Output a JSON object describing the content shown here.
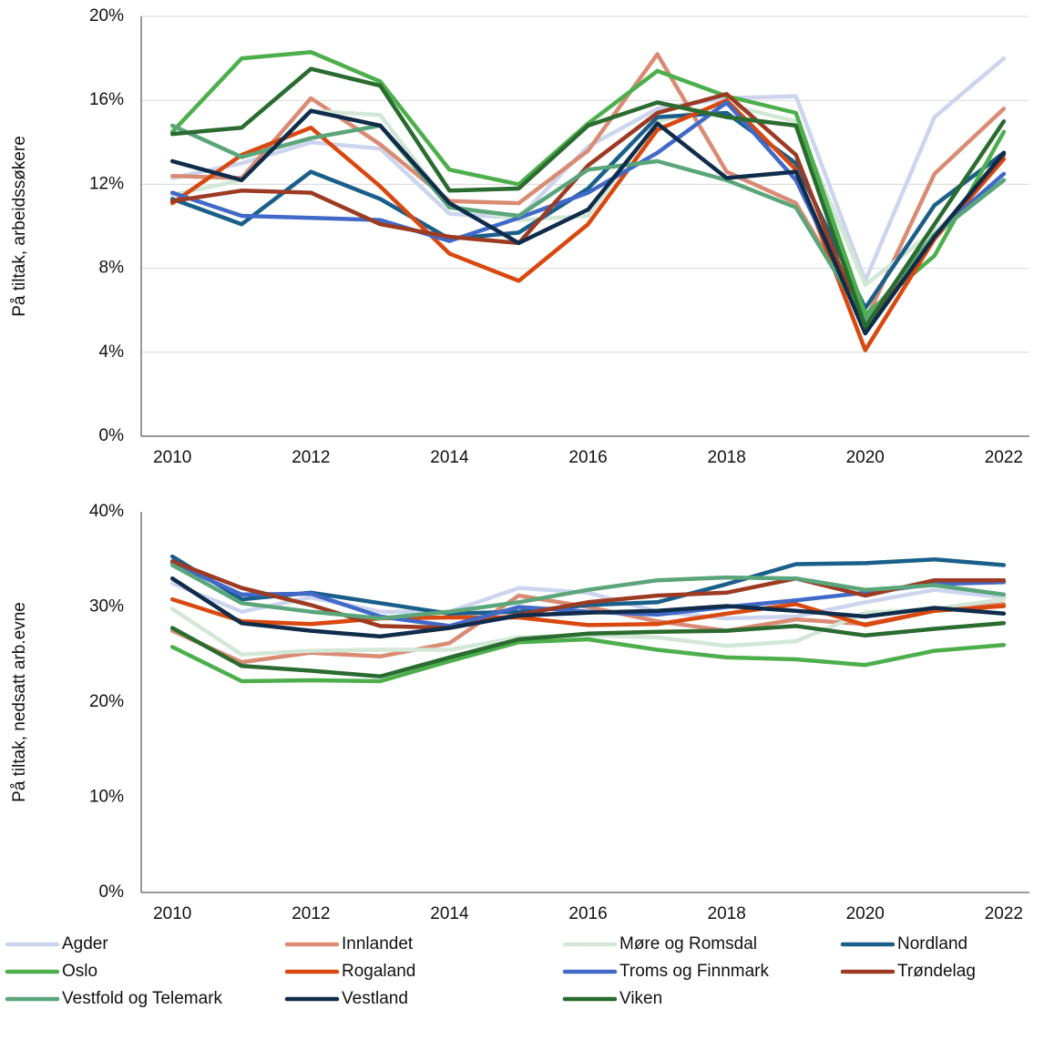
{
  "chart_data": [
    {
      "type": "line",
      "y_label": "På tiltak, arbeidssøkere",
      "x": [
        2010,
        2011,
        2012,
        2013,
        2014,
        2015,
        2016,
        2017,
        2018,
        2019,
        2020,
        2021,
        2022
      ],
      "xlim": [
        2009.55,
        2022.37
      ],
      "xticks": [
        2010,
        2012,
        2014,
        2016,
        2018,
        2020,
        2022
      ],
      "ylim": [
        0,
        20
      ],
      "yticks": [
        {
          "value": 0,
          "label": "0%"
        },
        {
          "value": 4,
          "label": "4%"
        },
        {
          "value": 8,
          "label": "8%"
        },
        {
          "value": 12,
          "label": "12%"
        },
        {
          "value": 16,
          "label": "16%"
        },
        {
          "value": 20,
          "label": "20%"
        }
      ],
      "grid": true,
      "series": [
        {
          "name": "Agder",
          "color": "#cdd5ee",
          "values": [
            12.3,
            13.0,
            14.0,
            13.7,
            10.6,
            10.4,
            13.8,
            15.6,
            16.1,
            16.2,
            7.4,
            15.2,
            18.0
          ]
        },
        {
          "name": "Innlandet",
          "color": "#d98b74",
          "values": [
            12.4,
            12.3,
            16.1,
            13.9,
            11.2,
            11.1,
            13.6,
            18.2,
            12.6,
            11.1,
            5.5,
            12.5,
            15.6
          ]
        },
        {
          "name": "Møre og Romsdal",
          "color": "#d3e7d7",
          "values": [
            11.5,
            12.2,
            15.5,
            15.3,
            11.0,
            10.3,
            10.5,
            15.0,
            15.8,
            15.0,
            7.2,
            9.8,
            12.2
          ]
        },
        {
          "name": "Nordland",
          "color": "#1a5f8a",
          "values": [
            11.3,
            10.1,
            12.6,
            11.3,
            9.4,
            9.7,
            11.8,
            15.2,
            15.4,
            13.0,
            6.1,
            11.0,
            13.5
          ]
        },
        {
          "name": "Oslo",
          "color": "#4caf4c",
          "values": [
            14.5,
            18.0,
            18.3,
            16.9,
            12.7,
            12.0,
            14.9,
            17.4,
            16.2,
            15.4,
            5.8,
            8.6,
            14.5
          ]
        },
        {
          "name": "Rogaland",
          "color": "#d9480f",
          "values": [
            11.1,
            13.4,
            14.7,
            11.9,
            8.7,
            7.4,
            10.1,
            14.6,
            16.0,
            12.7,
            4.1,
            9.4,
            13.2
          ]
        },
        {
          "name": "Troms og Finnmark",
          "color": "#4169c8",
          "values": [
            11.6,
            10.5,
            10.4,
            10.3,
            9.3,
            10.4,
            11.6,
            13.5,
            15.9,
            12.2,
            5.4,
            9.6,
            12.5
          ]
        },
        {
          "name": "Trøndelag",
          "color": "#9c3b22",
          "values": [
            11.2,
            11.7,
            11.6,
            10.1,
            9.5,
            9.2,
            12.9,
            15.4,
            16.3,
            13.4,
            5.0,
            9.5,
            13.4
          ]
        },
        {
          "name": "Vestfold og Telemark",
          "color": "#5aa57a",
          "values": [
            14.8,
            13.3,
            14.2,
            14.8,
            10.9,
            10.5,
            12.7,
            13.1,
            12.2,
            10.9,
            5.5,
            9.6,
            12.2
          ]
        },
        {
          "name": "Vestland",
          "color": "#0f2c4a",
          "values": [
            13.1,
            12.2,
            15.5,
            14.8,
            11.1,
            9.2,
            10.8,
            14.9,
            12.3,
            12.6,
            4.9,
            9.5,
            13.5
          ]
        },
        {
          "name": "Viken",
          "color": "#2a6b2f",
          "values": [
            14.4,
            14.7,
            17.5,
            16.7,
            11.7,
            11.8,
            14.8,
            15.9,
            15.2,
            14.8,
            5.2,
            10.1,
            15.0
          ]
        }
      ]
    },
    {
      "type": "line",
      "y_label": "På tiltak, nedsatt arb.evne",
      "x": [
        2010,
        2011,
        2012,
        2013,
        2014,
        2015,
        2016,
        2017,
        2018,
        2019,
        2020,
        2021,
        2022
      ],
      "xlim": [
        2009.55,
        2022.37
      ],
      "xticks": [
        2010,
        2012,
        2014,
        2016,
        2018,
        2020,
        2022
      ],
      "ylim": [
        0,
        40
      ],
      "yticks": [
        {
          "value": 0,
          "label": "0%"
        },
        {
          "value": 10,
          "label": "10%"
        },
        {
          "value": 20,
          "label": "20%"
        },
        {
          "value": 30,
          "label": "30%"
        },
        {
          "value": 40,
          "label": "40%"
        }
      ],
      "grid": false,
      "series": [
        {
          "name": "Agder",
          "color": "#cdd5ee",
          "values": [
            32.5,
            29.5,
            31.0,
            29.5,
            29.5,
            32.0,
            31.5,
            29.5,
            28.8,
            29.0,
            30.5,
            31.8,
            31.0
          ]
        },
        {
          "name": "Innlandet",
          "color": "#d98b74",
          "values": [
            27.5,
            24.2,
            25.2,
            24.8,
            26.2,
            31.2,
            30.0,
            28.5,
            27.5,
            28.7,
            28.2,
            29.6,
            30.3
          ]
        },
        {
          "name": "Møre og Romsdal",
          "color": "#d3e7d7",
          "values": [
            29.8,
            25.0,
            25.4,
            25.5,
            25.5,
            26.8,
            27.0,
            26.8,
            25.9,
            26.4,
            29.4,
            29.8,
            30.8
          ]
        },
        {
          "name": "Nordland",
          "color": "#1a5f8a",
          "values": [
            35.3,
            30.8,
            31.5,
            30.4,
            29.3,
            29.5,
            30.2,
            30.5,
            32.4,
            34.5,
            34.6,
            35.0,
            34.4
          ]
        },
        {
          "name": "Oslo",
          "color": "#4caf4c",
          "values": [
            25.8,
            22.2,
            22.3,
            22.2,
            24.3,
            26.3,
            26.6,
            25.5,
            24.7,
            24.5,
            23.9,
            25.4,
            26.0
          ]
        },
        {
          "name": "Rogaland",
          "color": "#d9480f",
          "values": [
            30.8,
            28.5,
            28.2,
            28.8,
            28.9,
            28.9,
            28.1,
            28.2,
            29.3,
            30.3,
            28.1,
            29.6,
            30.1
          ]
        },
        {
          "name": "Troms og Finnmark",
          "color": "#4169c8",
          "values": [
            34.6,
            31.3,
            31.4,
            29.0,
            28.0,
            30.0,
            29.5,
            29.2,
            30.0,
            30.7,
            31.5,
            32.4,
            32.6
          ]
        },
        {
          "name": "Trøndelag",
          "color": "#9c3b22",
          "values": [
            34.8,
            32.0,
            30.2,
            28.0,
            27.8,
            29.2,
            30.5,
            31.2,
            31.5,
            33.0,
            31.2,
            32.8,
            32.8
          ]
        },
        {
          "name": "Vestfold og Telemark",
          "color": "#5aa57a",
          "values": [
            34.4,
            30.4,
            29.5,
            28.8,
            29.5,
            30.5,
            31.8,
            32.8,
            33.1,
            33.0,
            31.8,
            32.3,
            31.3
          ]
        },
        {
          "name": "Vestland",
          "color": "#0f2c4a",
          "values": [
            33.0,
            28.3,
            27.5,
            26.9,
            27.8,
            29.1,
            29.4,
            29.6,
            30.1,
            29.6,
            29.0,
            29.9,
            29.3
          ]
        },
        {
          "name": "Viken",
          "color": "#2a6b2f",
          "values": [
            27.8,
            23.8,
            23.3,
            22.7,
            24.7,
            26.6,
            27.2,
            27.4,
            27.5,
            28.0,
            27.0,
            27.7,
            28.3
          ]
        }
      ]
    }
  ]
}
